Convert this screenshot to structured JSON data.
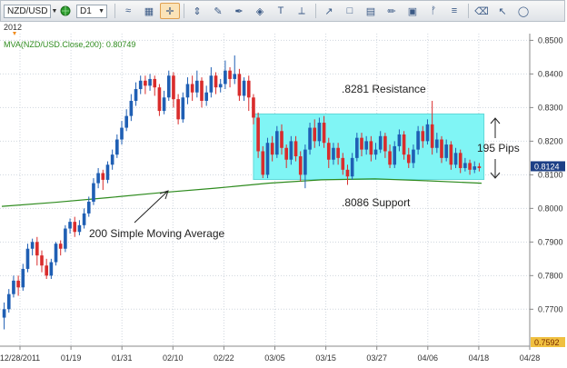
{
  "toolbar": {
    "symbol": "NZD/USD",
    "timeframe": "D1",
    "icons": [
      "globe-icon",
      "chart-type-icon",
      "crosshair-icon",
      "scale-icon",
      "drawing-icon",
      "pen-icon",
      "brush-icon",
      "text-icon",
      "ruler-icon",
      "trend-icon",
      "shapes-icon",
      "table-icon",
      "pencil-icon",
      "image-icon",
      "fibonacci-icon",
      "lines-icon",
      "eraser-icon",
      "cursor-icon",
      "ellipse-icon"
    ]
  },
  "chart_data": {
    "type": "candlestick",
    "year_label": "2012",
    "indicator": "MVA(NZD/USD.Close,200): 0.80749",
    "price_axis": {
      "min": 0.759,
      "max": 0.852,
      "ticks": [
        "0.8500",
        "0.8400",
        "0.8300",
        "0.8200",
        "0.8100",
        "0.8000",
        "0.7900",
        "0.7800",
        "0.7700"
      ],
      "current_price": "0.8124",
      "bottom_price": "0.7592"
    },
    "date_axis": [
      "12/28/2011",
      "01/19",
      "01/31",
      "02/10",
      "02/22",
      "03/05",
      "03/15",
      "03/27",
      "04/06",
      "04/18",
      "04/28"
    ],
    "candles": [
      [
        0.7675,
        0.77,
        0.764,
        0.772
      ],
      [
        0.77,
        0.7745,
        0.769,
        0.776
      ],
      [
        0.7745,
        0.7785,
        0.7735,
        0.78
      ],
      [
        0.7785,
        0.7765,
        0.774,
        0.78
      ],
      [
        0.7765,
        0.782,
        0.7755,
        0.7835
      ],
      [
        0.782,
        0.788,
        0.781,
        0.7895
      ],
      [
        0.788,
        0.79,
        0.786,
        0.791
      ],
      [
        0.79,
        0.786,
        0.783,
        0.7915
      ],
      [
        0.786,
        0.783,
        0.781,
        0.7875
      ],
      [
        0.783,
        0.78,
        0.779,
        0.785
      ],
      [
        0.78,
        0.784,
        0.779,
        0.785
      ],
      [
        0.784,
        0.7895,
        0.783,
        0.79
      ],
      [
        0.7895,
        0.788,
        0.786,
        0.7905
      ],
      [
        0.788,
        0.794,
        0.787,
        0.795
      ],
      [
        0.794,
        0.796,
        0.7925,
        0.797
      ],
      [
        0.796,
        0.793,
        0.7915,
        0.7975
      ],
      [
        0.793,
        0.795,
        0.792,
        0.7965
      ],
      [
        0.795,
        0.7985,
        0.794,
        0.8
      ],
      [
        0.7985,
        0.802,
        0.7975,
        0.8035
      ],
      [
        0.802,
        0.8075,
        0.801,
        0.809
      ],
      [
        0.8075,
        0.8105,
        0.806,
        0.812
      ],
      [
        0.8105,
        0.8085,
        0.8055,
        0.8115
      ],
      [
        0.8085,
        0.813,
        0.8075,
        0.814
      ],
      [
        0.813,
        0.816,
        0.8115,
        0.8175
      ],
      [
        0.816,
        0.8205,
        0.815,
        0.822
      ],
      [
        0.8205,
        0.824,
        0.819,
        0.826
      ],
      [
        0.824,
        0.8275,
        0.823,
        0.8295
      ],
      [
        0.8275,
        0.832,
        0.826,
        0.834
      ],
      [
        0.832,
        0.8355,
        0.8305,
        0.8375
      ],
      [
        0.8355,
        0.838,
        0.834,
        0.8395
      ],
      [
        0.838,
        0.8365,
        0.834,
        0.8395
      ],
      [
        0.8365,
        0.8385,
        0.835,
        0.84
      ],
      [
        0.8385,
        0.836,
        0.8335,
        0.8395
      ],
      [
        0.836,
        0.829,
        0.8275,
        0.837
      ],
      [
        0.829,
        0.833,
        0.828,
        0.835
      ],
      [
        0.833,
        0.8395,
        0.832,
        0.841
      ],
      [
        0.8395,
        0.8325,
        0.83,
        0.8405
      ],
      [
        0.8325,
        0.8265,
        0.825,
        0.834
      ],
      [
        0.8265,
        0.833,
        0.8255,
        0.8345
      ],
      [
        0.833,
        0.837,
        0.831,
        0.839
      ],
      [
        0.837,
        0.8345,
        0.832,
        0.8395
      ],
      [
        0.8345,
        0.838,
        0.833,
        0.841
      ],
      [
        0.838,
        0.832,
        0.83,
        0.839
      ],
      [
        0.832,
        0.8345,
        0.8305,
        0.8365
      ],
      [
        0.8345,
        0.8395,
        0.833,
        0.842
      ],
      [
        0.8395,
        0.836,
        0.834,
        0.8405
      ],
      [
        0.836,
        0.837,
        0.8345,
        0.8385
      ],
      [
        0.837,
        0.841,
        0.8355,
        0.844
      ],
      [
        0.841,
        0.8385,
        0.836,
        0.842
      ],
      [
        0.8385,
        0.84,
        0.837,
        0.8455
      ],
      [
        0.84,
        0.8335,
        0.832,
        0.8415
      ],
      [
        0.8335,
        0.838,
        0.832,
        0.839
      ],
      [
        0.838,
        0.833,
        0.829,
        0.8395
      ],
      [
        0.833,
        0.827,
        0.825,
        0.834
      ],
      [
        0.827,
        0.817,
        0.815,
        0.8285
      ],
      [
        0.817,
        0.81,
        0.809,
        0.8185
      ],
      [
        0.81,
        0.8195,
        0.809,
        0.821
      ],
      [
        0.8195,
        0.816,
        0.814,
        0.8215
      ],
      [
        0.816,
        0.823,
        0.815,
        0.8245
      ],
      [
        0.823,
        0.818,
        0.816,
        0.825
      ],
      [
        0.818,
        0.8145,
        0.812,
        0.819
      ],
      [
        0.8145,
        0.82,
        0.813,
        0.8215
      ],
      [
        0.82,
        0.8155,
        0.814,
        0.8215
      ],
      [
        0.8155,
        0.81,
        0.808,
        0.817
      ],
      [
        0.81,
        0.8175,
        0.806,
        0.819
      ],
      [
        0.8175,
        0.824,
        0.816,
        0.8255
      ],
      [
        0.824,
        0.82,
        0.818,
        0.8265
      ],
      [
        0.82,
        0.8255,
        0.8185,
        0.827
      ],
      [
        0.8255,
        0.8195,
        0.818,
        0.8275
      ],
      [
        0.8195,
        0.8145,
        0.812,
        0.821
      ],
      [
        0.8145,
        0.818,
        0.813,
        0.8195
      ],
      [
        0.818,
        0.815,
        0.813,
        0.8195
      ],
      [
        0.815,
        0.8115,
        0.81,
        0.8165
      ],
      [
        0.8115,
        0.8095,
        0.807,
        0.813
      ],
      [
        0.8095,
        0.815,
        0.8085,
        0.8165
      ],
      [
        0.815,
        0.821,
        0.814,
        0.8225
      ],
      [
        0.821,
        0.8175,
        0.8155,
        0.8225
      ],
      [
        0.8175,
        0.82,
        0.816,
        0.8215
      ],
      [
        0.82,
        0.816,
        0.814,
        0.8215
      ],
      [
        0.816,
        0.8175,
        0.8145,
        0.8195
      ],
      [
        0.8175,
        0.8215,
        0.8165,
        0.823
      ],
      [
        0.8215,
        0.817,
        0.815,
        0.8225
      ],
      [
        0.817,
        0.813,
        0.812,
        0.819
      ],
      [
        0.813,
        0.8185,
        0.812,
        0.82
      ],
      [
        0.8185,
        0.822,
        0.817,
        0.8235
      ],
      [
        0.822,
        0.816,
        0.8145,
        0.823
      ],
      [
        0.816,
        0.8135,
        0.812,
        0.818
      ],
      [
        0.8135,
        0.8175,
        0.812,
        0.819
      ],
      [
        0.8175,
        0.823,
        0.816,
        0.8245
      ],
      [
        0.823,
        0.82,
        0.818,
        0.8245
      ],
      [
        0.82,
        0.825,
        0.819,
        0.8265
      ],
      [
        0.825,
        0.818,
        0.816,
        0.832
      ],
      [
        0.818,
        0.8205,
        0.8165,
        0.8225
      ],
      [
        0.8205,
        0.815,
        0.8135,
        0.8215
      ],
      [
        0.815,
        0.819,
        0.814,
        0.8205
      ],
      [
        0.819,
        0.813,
        0.8115,
        0.82
      ],
      [
        0.813,
        0.8165,
        0.812,
        0.818
      ],
      [
        0.8165,
        0.812,
        0.8105,
        0.8175
      ],
      [
        0.812,
        0.8135,
        0.811,
        0.815
      ],
      [
        0.8135,
        0.8115,
        0.81,
        0.8145
      ],
      [
        0.8115,
        0.8125,
        0.8105,
        0.814
      ],
      [
        0.8125,
        0.812,
        0.811,
        0.8135
      ]
    ],
    "moving_average": [
      [
        0,
        0.8006
      ],
      [
        20,
        0.8018
      ],
      [
        40,
        0.8032
      ],
      [
        60,
        0.8047
      ],
      [
        80,
        0.806
      ],
      [
        100,
        0.8075
      ],
      [
        120,
        0.8085
      ],
      [
        140,
        0.8088
      ],
      [
        160,
        0.8082
      ],
      [
        180,
        0.8075
      ]
    ],
    "annotations": {
      "resistance_label": ".8281 Resistance",
      "support_label": ".8086 Support",
      "range_label": "195 Pips",
      "ma_label": "200 Simple Moving Average",
      "resistance": 0.8281,
      "support": 0.8086
    },
    "colors": {
      "up": "#1f5fb4",
      "down": "#d92c2c",
      "ma_line": "#2e8b1e",
      "range_box": "#80f5f5",
      "price_marker": "#1c3f86",
      "bottom_marker": "#f0c040"
    }
  }
}
